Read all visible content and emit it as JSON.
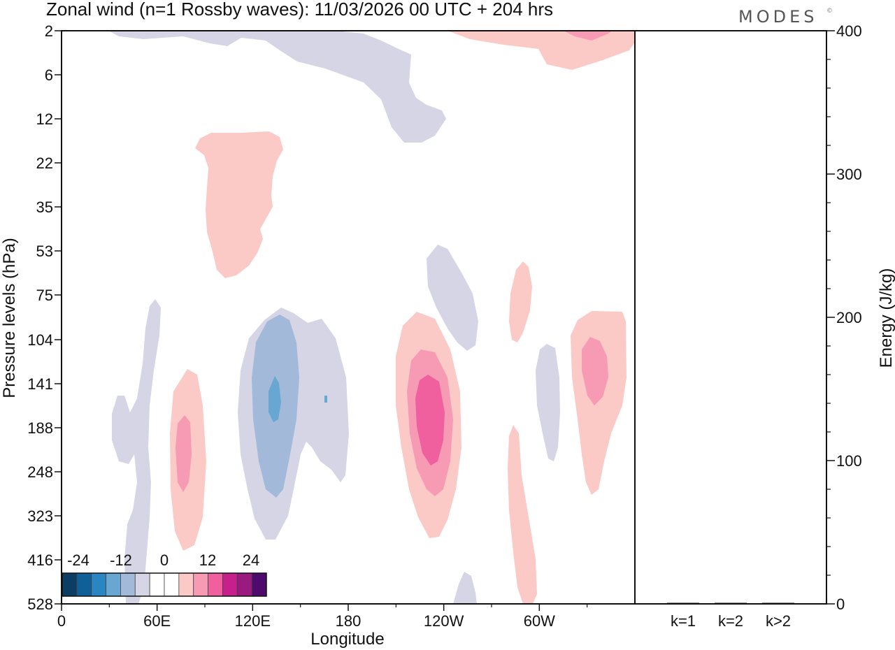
{
  "chart_data": {
    "type": "contour",
    "title": "Zonal wind (n=1 Rossby waves):  11/03/2026  00 UTC  + 204 hrs",
    "brand": "MODES",
    "brand_mark": "©",
    "xlabel": "Longitude",
    "ylabel": "Pressure levels (hPa)",
    "y2label": "Energy (J/kg)",
    "x_ticks": [
      "0",
      "60E",
      "120E",
      "180",
      "120W",
      "60W"
    ],
    "x_tick_degrees": [
      0,
      60,
      120,
      180,
      240,
      300
    ],
    "x_range_degrees": [
      0,
      360
    ],
    "pressure_levels": [
      "2",
      "6",
      "12",
      "22",
      "35",
      "53",
      "75",
      "104",
      "141",
      "188",
      "248",
      "323",
      "416",
      "528"
    ],
    "energy_ticks": [
      "0",
      "100",
      "200",
      "300",
      "400"
    ],
    "energy_range": [
      0,
      400
    ],
    "energy_bars": {
      "categories": [
        "k=1",
        "k=2",
        "k>2"
      ],
      "values": [
        0.2,
        0.5,
        0.6
      ]
    },
    "colorbar": {
      "labels": [
        "-24",
        "-12",
        "0",
        "12",
        "24"
      ],
      "colors": [
        "#0c3e63",
        "#0f5f98",
        "#2a86c2",
        "#67a7d2",
        "#a2b9da",
        "#d5d5e6",
        "#ffffff",
        "#ffffff",
        "#fbc9c6",
        "#f79ab4",
        "#f05f9e",
        "#c71f8c",
        "#9a1a80",
        "#4f0a6d"
      ]
    },
    "contour_levels_ms": [
      -2,
      -6,
      -10,
      2,
      6,
      10
    ],
    "features": [
      {
        "sign": "negative",
        "peak_ms": -2,
        "lon_deg": 50,
        "pressure_hPa": "188"
      },
      {
        "sign": "negative",
        "peak_ms": -10,
        "lon_deg": 133,
        "pressure_hPa": "141"
      },
      {
        "sign": "positive",
        "peak_ms": 6,
        "lon_deg": 77,
        "pressure_hPa": "188"
      },
      {
        "sign": "positive",
        "peak_ms": 2,
        "lon_deg": 130,
        "pressure_hPa": "22"
      },
      {
        "sign": "positive",
        "peak_ms": 10,
        "lon_deg": 234,
        "pressure_hPa": "188"
      },
      {
        "sign": "negative",
        "peak_ms": -2,
        "lon_deg": 251,
        "pressure_hPa": "75"
      },
      {
        "sign": "positive",
        "peak_ms": 2,
        "lon_deg": 290,
        "pressure_hPa": "75"
      },
      {
        "sign": "negative",
        "peak_ms": -2,
        "lon_deg": 312,
        "pressure_hPa": "188"
      },
      {
        "sign": "positive",
        "peak_ms": 6,
        "lon_deg": 336,
        "pressure_hPa": "141"
      },
      {
        "sign": "positive",
        "peak_ms": 2,
        "lon_deg": 292,
        "pressure_hPa": "416"
      },
      {
        "sign": "negative",
        "peak_ms": -2,
        "lon_deg": 200,
        "pressure_hPa": "6"
      },
      {
        "sign": "positive",
        "peak_ms": 6,
        "lon_deg": 330,
        "pressure_hPa": "2"
      }
    ]
  }
}
